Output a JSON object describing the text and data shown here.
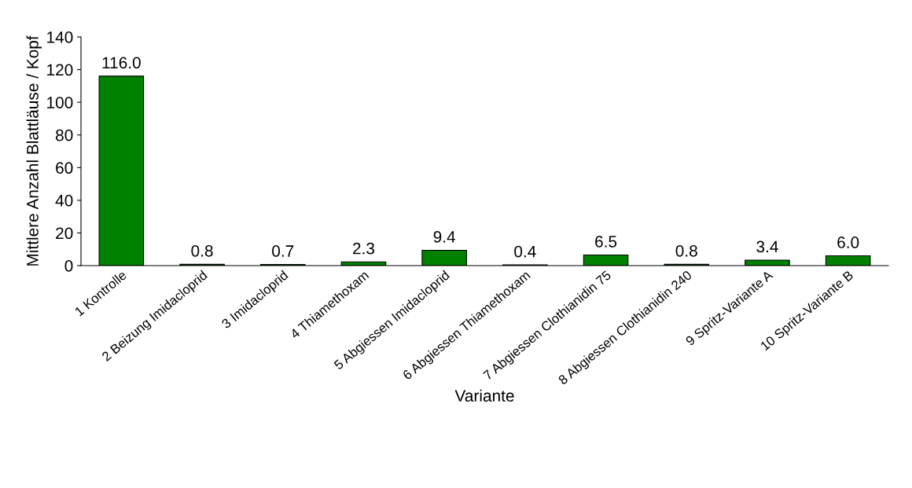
{
  "chart_data": {
    "type": "bar",
    "categories": [
      "1 Kontrolle",
      "2 Beizung Imidacloprid",
      "3 Imidacloprid",
      "4 Thiamethoxam",
      "5 Abgiessen Imidacloprid",
      "6 Abgiessen Thiamethoxam",
      "7 Abgiessen Clothianidin 75",
      "8 Abgiessen Clothianidin 240",
      "9 Spritz-Variante A",
      "10 Spritz-Variante B"
    ],
    "values": [
      116.0,
      0.8,
      0.7,
      2.3,
      9.4,
      0.4,
      6.5,
      0.8,
      3.4,
      6.0
    ],
    "value_labels": [
      "116.0",
      "0.8",
      "0.7",
      "2.3",
      "9.4",
      "0.4",
      "6.5",
      "0.8",
      "3.4",
      "6.0"
    ],
    "color": "#008000",
    "xlabel": "Variante",
    "ylabel": "Mittlere Anzahl Blattläuse / Kopf",
    "ylim": [
      0,
      140
    ],
    "yticks": [
      0,
      20,
      40,
      60,
      80,
      100,
      120,
      140
    ],
    "grid": false,
    "legend": false
  }
}
